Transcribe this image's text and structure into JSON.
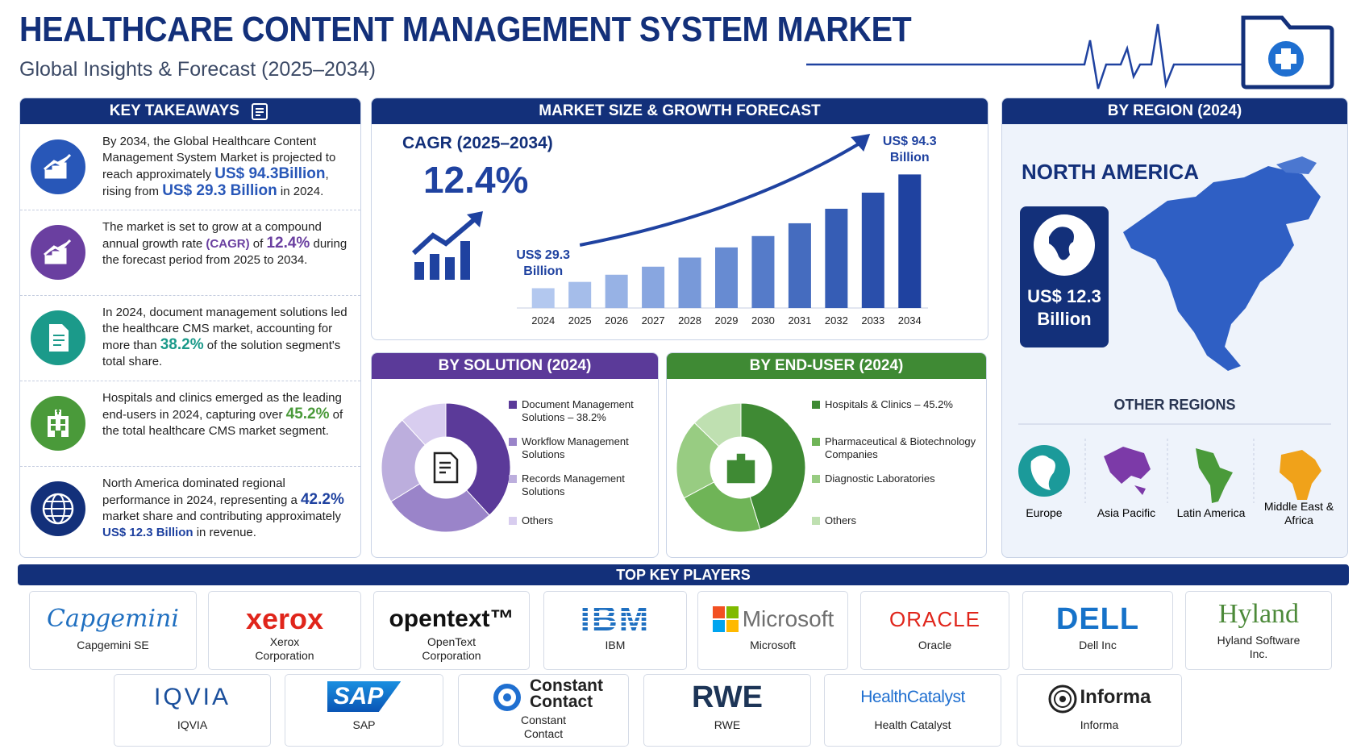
{
  "header": {
    "title": "HEALTHCARE CONTENT MANAGEMENT SYSTEM MARKET",
    "subtitle": "Global Insights & Forecast (2025–2034)"
  },
  "takeaways": {
    "title": "KEY TAKEAWAYS",
    "items": [
      {
        "segments": [
          {
            "text": "By 2034, the Global Healthcare Content Management System Market is projected to reach approximately ",
            "style": "plain"
          },
          {
            "text": "US$ 94.3Billion",
            "style": "hl"
          },
          {
            "text": ", rising from ",
            "style": "plain"
          },
          {
            "text": "US$ 29.3 Billion",
            "style": "hl"
          },
          {
            "text": " in 2024.",
            "style": "plain"
          }
        ]
      },
      {
        "segments": [
          {
            "text": "The market is set to grow at a compound annual growth rate ",
            "style": "plain"
          },
          {
            "text": "(CAGR)",
            "style": "bold"
          },
          {
            "text": " of ",
            "style": "plain"
          },
          {
            "text": "12.4%",
            "style": "hl"
          },
          {
            "text": " during the forecast period from 2025 to 2034.",
            "style": "plain"
          }
        ]
      },
      {
        "segments": [
          {
            "text": "In 2024, document management solutions led the healthcare CMS market, accounting for more than ",
            "style": "plain"
          },
          {
            "text": "38.2%",
            "style": "hl"
          },
          {
            "text": " of the solution segment's total share.",
            "style": "plain"
          }
        ]
      },
      {
        "segments": [
          {
            "text": "Hospitals and clinics emerged as the leading end-users in 2024, capturing over ",
            "style": "plain"
          },
          {
            "text": "45.2%",
            "style": "hl"
          },
          {
            "text": " of the total healthcare CMS market segment.",
            "style": "plain"
          }
        ]
      },
      {
        "segments": [
          {
            "text": "North America dominated regional performance in 2024, representing a ",
            "style": "plain"
          },
          {
            "text": "42.2%",
            "style": "hl"
          },
          {
            "text": " market share and contributing approximately ",
            "style": "plain"
          },
          {
            "text": "US$ 12.3 Billion",
            "style": "bold"
          },
          {
            "text": " in revenue.",
            "style": "plain"
          }
        ]
      }
    ]
  },
  "chart_data": [
    {
      "type": "bar",
      "title": "MARKET SIZE & GROWTH FORECAST",
      "cagr_label": "CAGR (2025–2034)",
      "cagr_value": "12.4%",
      "categories": [
        "2024",
        "2025",
        "2026",
        "2027",
        "2028",
        "2029",
        "2030",
        "2031",
        "2032",
        "2033",
        "2034"
      ],
      "values": [
        29.3,
        32.9,
        37.0,
        41.6,
        46.8,
        52.6,
        59.1,
        66.4,
        74.7,
        83.9,
        94.3
      ],
      "value_labels": [
        "US$ 29.3 Billion",
        null,
        null,
        null,
        null,
        null,
        null,
        null,
        null,
        null,
        "US$ 94.3 Billion"
      ],
      "ylim": [
        18,
        100
      ],
      "colors": [
        "#b3c8ef",
        "#a5bdea",
        "#97b2e5",
        "#88a6e0",
        "#7899d9",
        "#678bd2",
        "#557bc9",
        "#456cbf",
        "#365db5",
        "#2a4fab",
        "#1f42a0"
      ]
    },
    {
      "type": "donut",
      "title": "BY SOLUTION (2024)",
      "categories": [
        "Document Management Solutions – 38.2%",
        "Workflow Management Solutions",
        "Records Management Solutions",
        "Others"
      ],
      "values": [
        38.2,
        28,
        22,
        11.8
      ],
      "colors": [
        "#5b3a99",
        "#9a84c9",
        "#bcaedd",
        "#d8cdef"
      ]
    },
    {
      "type": "donut",
      "title": "BY END-USER (2024)",
      "categories": [
        "Hospitals & Clinics – 45.2%",
        "Pharmaceutical & Biotechnology Companies",
        "Diagnostic Laboratories",
        "Others"
      ],
      "values": [
        45.2,
        22,
        20,
        12.8
      ],
      "colors": [
        "#3f8a34",
        "#6fb457",
        "#98cc82",
        "#bfe0b1"
      ]
    }
  ],
  "region": {
    "title": "BY REGION (2024)",
    "leader": "NORTH AMERICA",
    "leader_value": "US$ 12.3 Billion",
    "others_title": "OTHER REGIONS",
    "others": [
      "Europe",
      "Asia Pacific",
      "Latin America",
      "Middle East & Africa"
    ]
  },
  "players": {
    "title": "TOP KEY PLAYERS",
    "items": [
      {
        "logo": "Capgemini",
        "name": "Capgemini SE"
      },
      {
        "logo": "xerox",
        "name": "Xerox Corporation"
      },
      {
        "logo": "opentext™",
        "name": "OpenText Corporation"
      },
      {
        "logo": "IBM",
        "name": "IBM"
      },
      {
        "logo": "Microsoft",
        "name": "Microsoft"
      },
      {
        "logo": "ORACLE",
        "name": "Oracle"
      },
      {
        "logo": "DELL",
        "name": "Dell Inc"
      },
      {
        "logo": "Hyland",
        "name": "Hyland Software Inc."
      },
      {
        "logo": "IQVIA",
        "name": "IQVIA"
      },
      {
        "logo": "SAP",
        "name": "SAP"
      },
      {
        "logo": "Constant Contact",
        "name": "Constant Contact"
      },
      {
        "logo": "RWE",
        "name": "RWE"
      },
      {
        "logo": "HealthCatalyst",
        "name": "Health Catalyst"
      },
      {
        "logo": "Informa",
        "name": "Informa"
      }
    ]
  }
}
